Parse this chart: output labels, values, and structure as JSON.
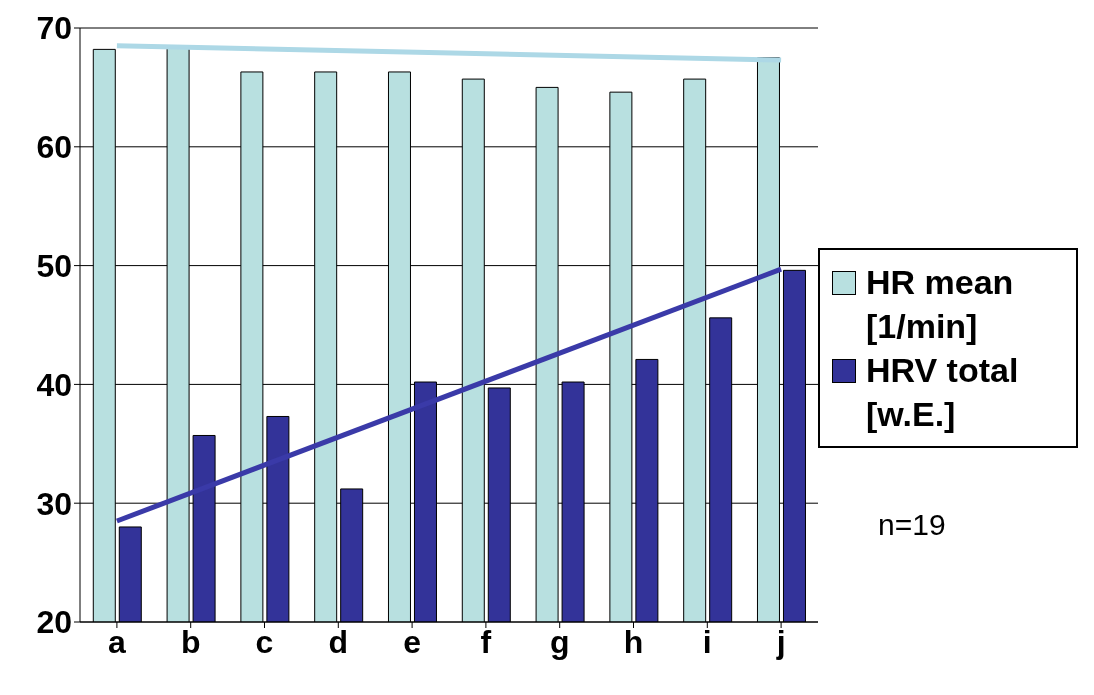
{
  "chart_data": {
    "type": "bar",
    "categories": [
      "a",
      "b",
      "c",
      "d",
      "e",
      "f",
      "g",
      "h",
      "i",
      "j"
    ],
    "series": [
      {
        "name": "HR mean [1/min]",
        "color": "#b8e0e0",
        "values": [
          68.2,
          68.5,
          66.3,
          66.3,
          66.3,
          65.7,
          65.0,
          64.6,
          65.7,
          67.5
        ]
      },
      {
        "name": "HRV total [w.E.]",
        "color": "#333399",
        "values": [
          28.0,
          35.7,
          37.3,
          31.2,
          40.2,
          39.7,
          40.2,
          42.1,
          45.6,
          49.6
        ]
      },
      {
        "type": "line",
        "color": "#add8e6",
        "values": [
          68.5,
          null,
          null,
          null,
          null,
          null,
          null,
          null,
          null,
          67.3
        ]
      },
      {
        "type": "line",
        "color": "#3a3aa8",
        "values": [
          28.5,
          null,
          null,
          null,
          null,
          null,
          null,
          null,
          null,
          49.7
        ]
      }
    ],
    "ylim": [
      20,
      70
    ],
    "yticks": [
      20,
      30,
      40,
      50,
      60,
      70
    ],
    "grid": "y",
    "legend": "right",
    "marker": "none",
    "annotations": [
      "n=19"
    ]
  }
}
